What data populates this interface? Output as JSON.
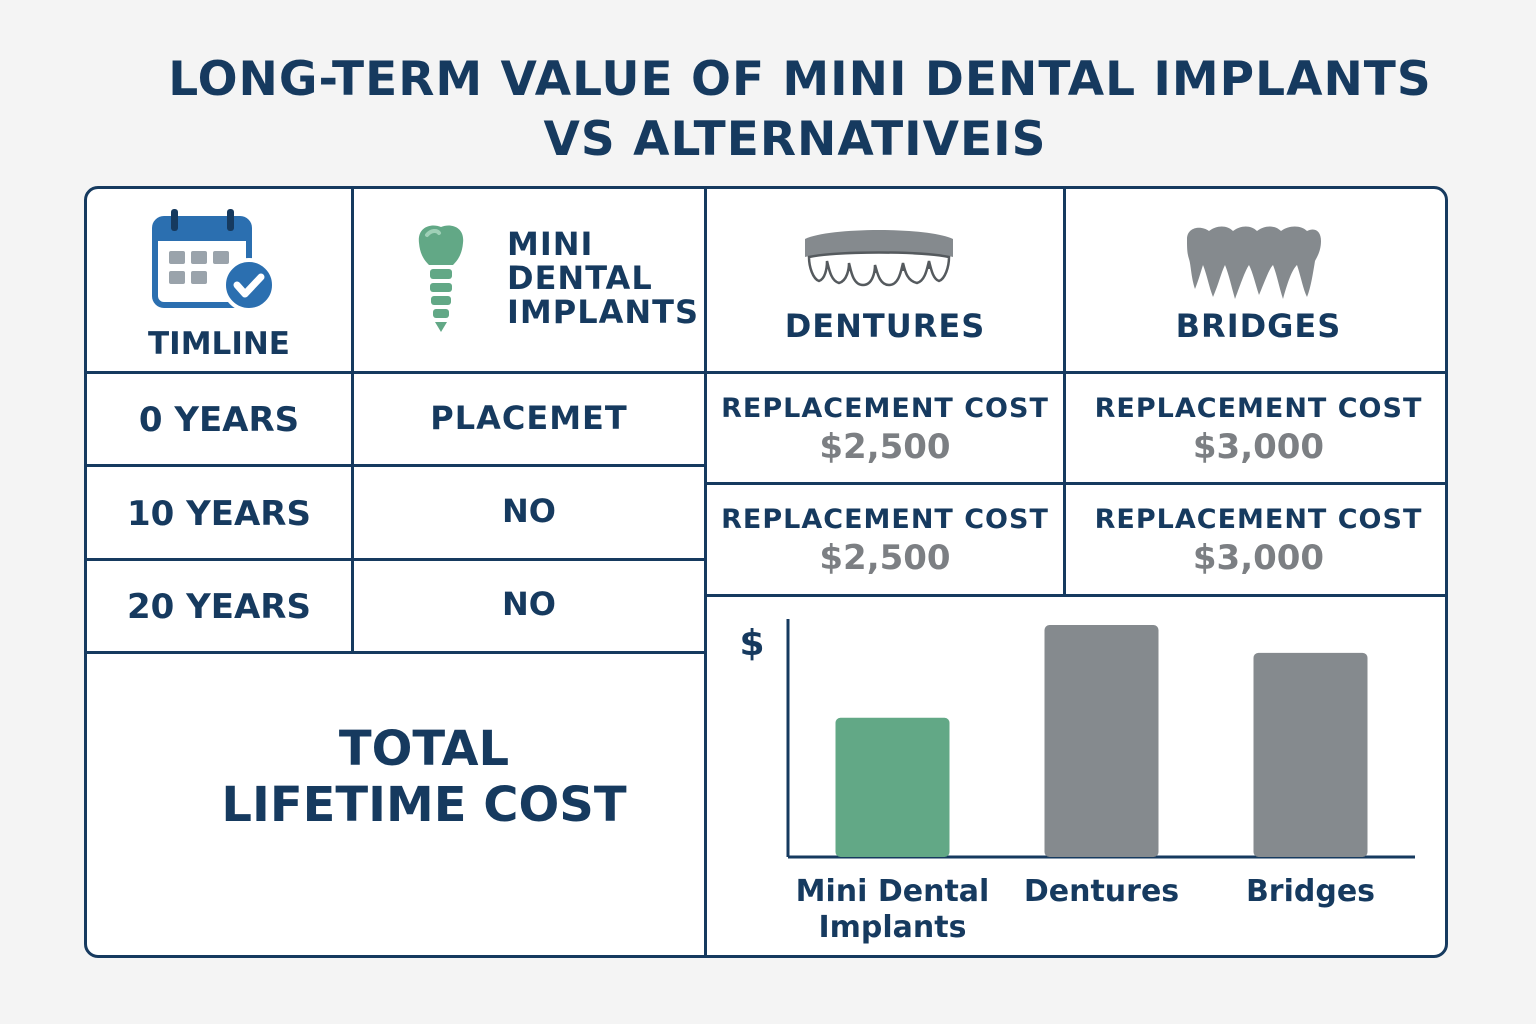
{
  "title": {
    "line1": "LONG-TERM VALUE OF MINI DENTAL IMPLANTS",
    "line2": "VS ALTERNATIVEIS"
  },
  "header": {
    "timeline": "TIMLINE",
    "implants": [
      "MINI",
      "DENTAL",
      "IMPLANTS"
    ],
    "dentures": "DENTURES",
    "bridges": "BRIDGES"
  },
  "rows": [
    {
      "period": "0 YEARS",
      "implants": "PLACEMET"
    },
    {
      "period": "10 YEARS",
      "implants": "NO"
    },
    {
      "period": "20 YEARS",
      "implants": "NO"
    }
  ],
  "replacements": [
    {
      "dentures_label": "REPLACEMENT COST",
      "dentures_value": "$2,500",
      "bridges_label": "REPLACEMENT COST",
      "bridges_value": "$3,000"
    },
    {
      "dentures_label": "REPLACEMENT COST",
      "dentures_value": "$2,500",
      "bridges_label": "REPLACEMENT COST",
      "bridges_value": "$3,000"
    }
  ],
  "total": {
    "line1": "TOTAL",
    "line2": "LIFETIME COST"
  },
  "icons": {
    "timeline": "calendar-check-icon",
    "implants": "dental-implant-icon",
    "dentures": "dentures-icon",
    "bridges": "dental-bridge-icon"
  },
  "colors": {
    "navy": "#163a5f",
    "implant_green": "#62a886",
    "bar_gray": "#858a8e",
    "value_gray": "#7c7f83"
  },
  "chart_data": {
    "type": "bar",
    "ylabel": "$",
    "xlabel": "",
    "categories": [
      {
        "line1": "Mini Dental",
        "line2": "Implants"
      },
      {
        "line1": "Dentures",
        "line2": ""
      },
      {
        "line1": "Bridges",
        "line2": ""
      }
    ],
    "values": [
      60,
      100,
      88
    ],
    "ylim": [
      0,
      100
    ],
    "colors": [
      "#62a886",
      "#858a8e",
      "#858a8e"
    ],
    "grid": false
  }
}
